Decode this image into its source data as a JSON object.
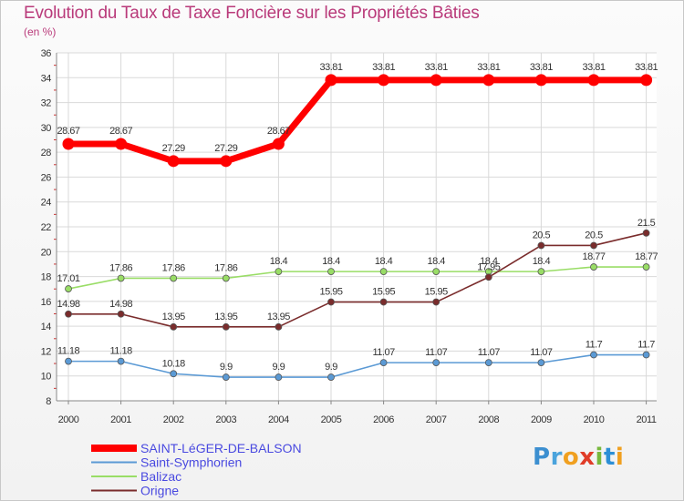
{
  "chart_data": {
    "type": "line",
    "title": "Evolution du Taux de Taxe Foncière sur les Propriétés Bâties",
    "unit_label": "(en %)",
    "x": [
      "2000",
      "2001",
      "2002",
      "2003",
      "2004",
      "2005",
      "2006",
      "2007",
      "2008",
      "2009",
      "2010",
      "2011"
    ],
    "ylim": [
      8,
      36
    ],
    "yticks": [
      8,
      10,
      12,
      14,
      16,
      18,
      20,
      22,
      24,
      26,
      28,
      30,
      32,
      34,
      36
    ],
    "grid": true,
    "series": [
      {
        "name": "SAINT-LéGER-DE-BALSON",
        "color": "#ff0000",
        "values": [
          28.67,
          28.67,
          27.29,
          27.29,
          28.67,
          33.81,
          33.81,
          33.81,
          33.81,
          33.81,
          33.81,
          33.81
        ],
        "labels": [
          "28.67",
          "28.67",
          "27.29",
          "27.29",
          "28.67",
          "33.81",
          "33.81",
          "33.81",
          "33.81",
          "33.81",
          "33.81",
          "33.81"
        ]
      },
      {
        "name": "Saint-Symphorien",
        "color": "#5b9ad5",
        "values": [
          11.18,
          11.18,
          10.18,
          9.9,
          9.9,
          9.9,
          11.07,
          11.07,
          11.07,
          11.07,
          11.7,
          11.7
        ],
        "labels": [
          "11.18",
          "11.18",
          "10.18",
          "9.9",
          "9.9",
          "9.9",
          "11.07",
          "11.07",
          "11.07",
          "11.07",
          "11.7",
          "11.7"
        ]
      },
      {
        "name": "Balizac",
        "color": "#99dd66",
        "values": [
          17.01,
          17.86,
          17.86,
          17.86,
          18.4,
          18.4,
          18.4,
          18.4,
          18.4,
          18.4,
          18.77,
          18.77
        ],
        "labels": [
          "17.01",
          "17.86",
          "17.86",
          "17.86",
          "18.4",
          "18.4",
          "18.4",
          "18.4",
          "18.4",
          "18.4",
          "18.77",
          "18.77"
        ]
      },
      {
        "name": "Origne",
        "color": "#7a2c2c",
        "values": [
          14.98,
          14.98,
          13.95,
          13.95,
          13.95,
          15.95,
          15.95,
          15.95,
          17.95,
          20.5,
          20.5,
          21.5
        ],
        "labels": [
          "14.98",
          "14.98",
          "13.95",
          "13.95",
          "13.95",
          "15.95",
          "15.95",
          "15.95",
          "17.95",
          "20.5",
          "20.5",
          "21.5"
        ]
      }
    ]
  },
  "logo": [
    "P",
    "r",
    "o",
    "x",
    "i",
    "t",
    "i"
  ]
}
